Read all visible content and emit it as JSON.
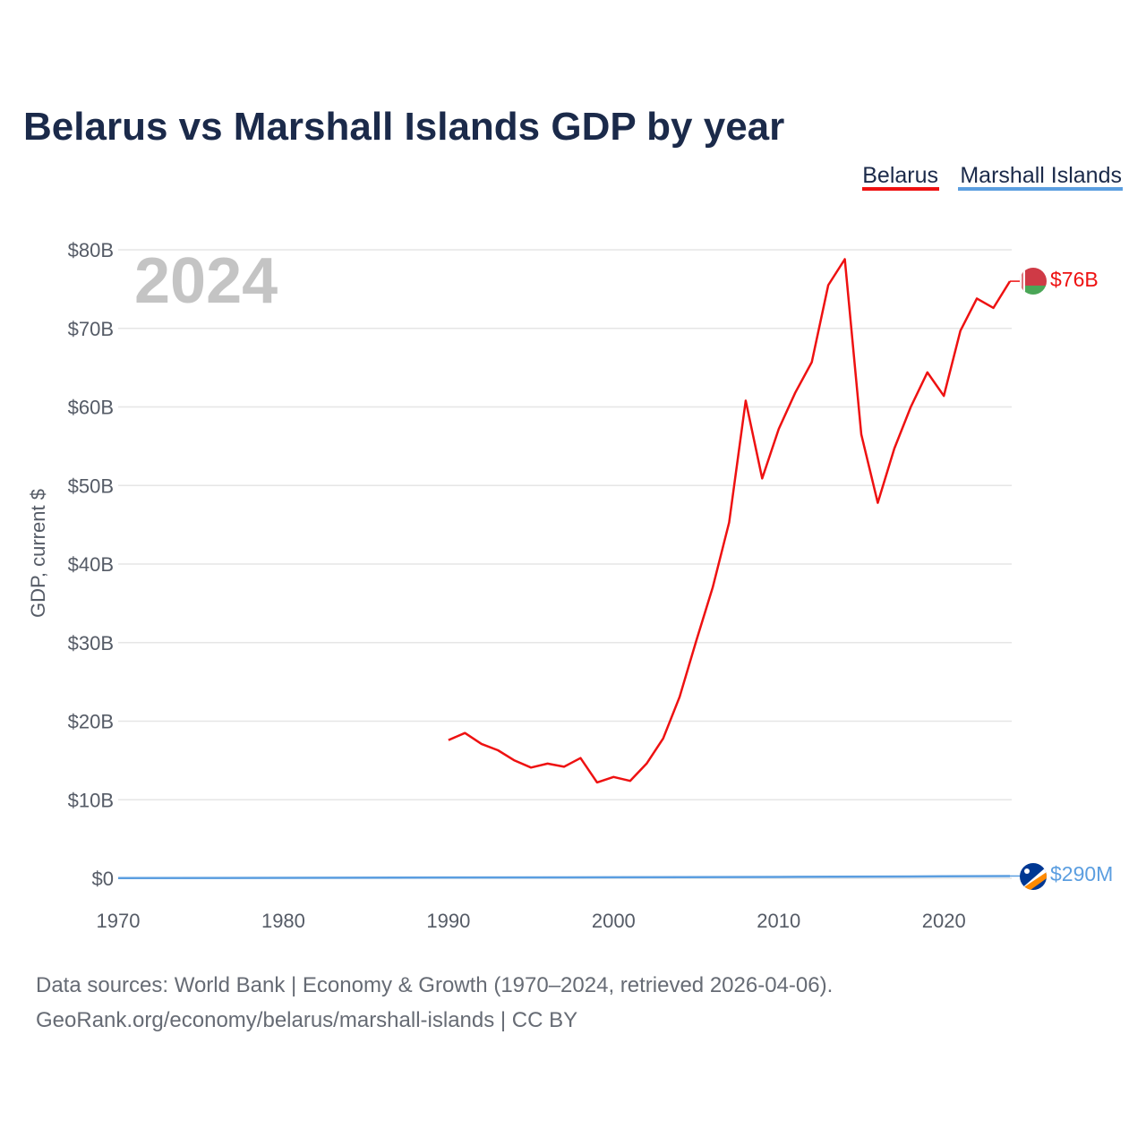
{
  "chart_data": {
    "type": "line",
    "title": "Belarus vs Marshall Islands GDP by year",
    "ylabel": "GDP, current $",
    "xlabel": "",
    "year_label": "2024",
    "x_ticks": [
      1970,
      1980,
      1990,
      2000,
      2010,
      2020
    ],
    "y_ticks": [
      {
        "value": 0,
        "label": "$0"
      },
      {
        "value": 10,
        "label": "$10B"
      },
      {
        "value": 20,
        "label": "$20B"
      },
      {
        "value": 30,
        "label": "$30B"
      },
      {
        "value": 40,
        "label": "$40B"
      },
      {
        "value": 50,
        "label": "$50B"
      },
      {
        "value": 60,
        "label": "$60B"
      },
      {
        "value": 70,
        "label": "$70B"
      },
      {
        "value": 80,
        "label": "$80B"
      }
    ],
    "xlim": [
      1970,
      2024
    ],
    "ylim": [
      0,
      80
    ],
    "units": "billions USD",
    "legend_position": "top-right",
    "series": [
      {
        "name": "Belarus",
        "color": "#ee1111",
        "flag": "belarus-flag",
        "end_label": "$76B",
        "x": [
          1990,
          1991,
          1992,
          1993,
          1994,
          1995,
          1996,
          1997,
          1998,
          1999,
          2000,
          2001,
          2002,
          2003,
          2004,
          2005,
          2006,
          2007,
          2008,
          2009,
          2010,
          2011,
          2012,
          2013,
          2014,
          2015,
          2016,
          2017,
          2018,
          2019,
          2020,
          2021,
          2022,
          2023,
          2024
        ],
        "values": [
          17.6,
          18.5,
          17.1,
          16.3,
          15.0,
          14.1,
          14.6,
          14.2,
          15.3,
          12.2,
          12.9,
          12.4,
          14.6,
          17.8,
          23.1,
          30.2,
          37.0,
          45.3,
          60.8,
          50.9,
          57.2,
          61.8,
          65.7,
          75.5,
          78.8,
          56.5,
          47.8,
          54.7,
          60.0,
          64.4,
          61.4,
          69.7,
          73.8,
          72.6,
          76.0
        ]
      },
      {
        "name": "Marshall Islands",
        "color": "#5b9ee0",
        "flag": "marshall-islands-flag",
        "end_label": "$290M",
        "x": [
          1970,
          1980,
          1990,
          2000,
          2010,
          2020,
          2024
        ],
        "values": [
          0.03,
          0.06,
          0.1,
          0.12,
          0.17,
          0.25,
          0.29
        ]
      }
    ]
  },
  "footer": {
    "source_line": "Data sources: World Bank | Economy & Growth (1970–2024, retrieved 2026-04-06).",
    "attribution_line": "GeoRank.org/economy/belarus/marshall-islands | CC BY"
  },
  "colors": {
    "title": "#1b2a4a",
    "grid": "#e6e6e6",
    "year_label": "#c4c4c4"
  }
}
